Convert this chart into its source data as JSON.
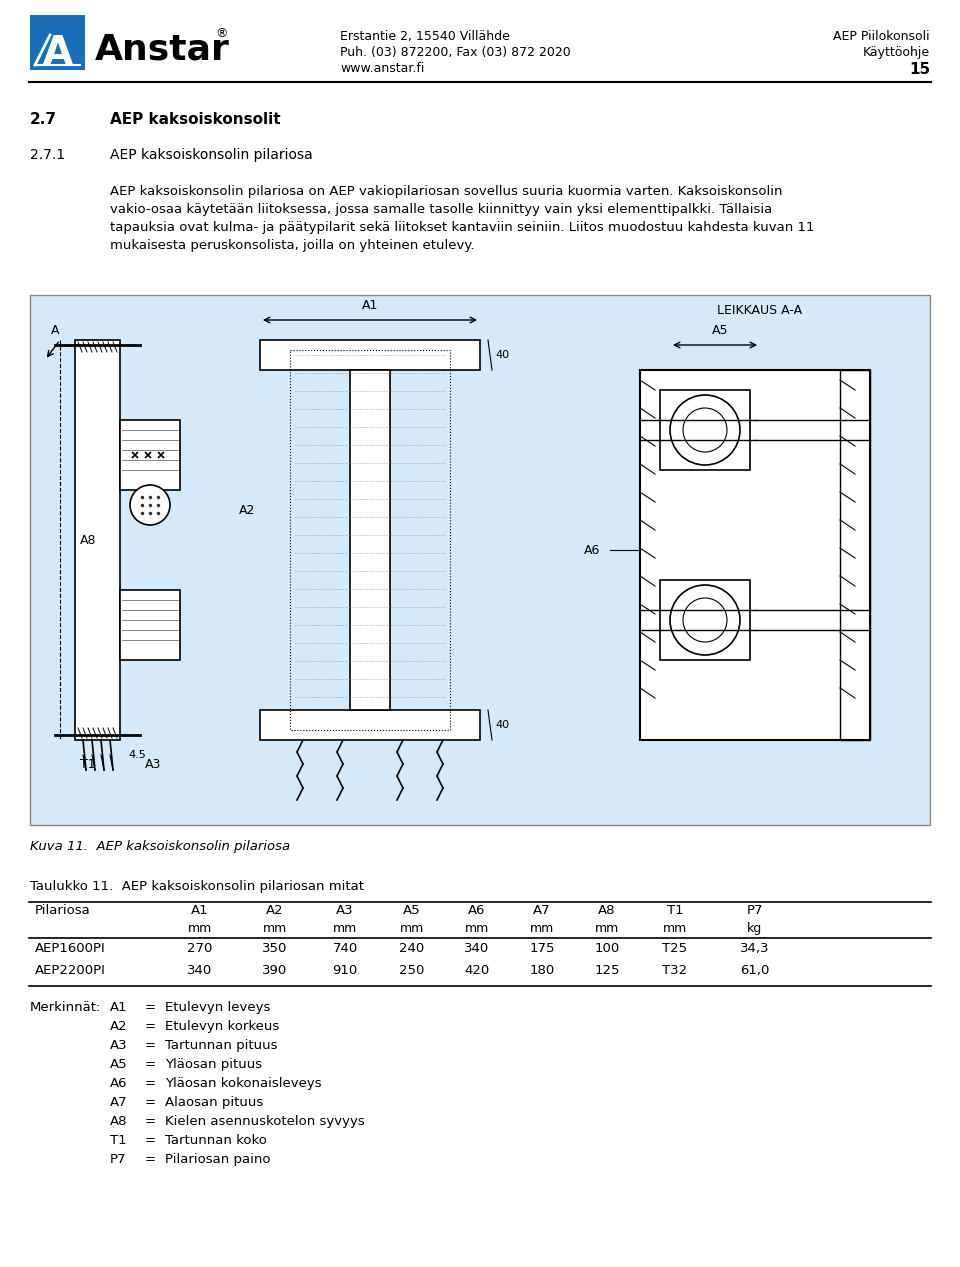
{
  "page_width": 9.6,
  "page_height": 12.67,
  "bg_color": "#ffffff",
  "header": {
    "logo_text": "Anstar",
    "address_line1": "Erstantie 2, 15540 Villähde",
    "address_line2": "Puh. (03) 872200, Fax (03) 872 2020",
    "address_line3": "www.anstar.fi",
    "right_line1": "AEP Piilokonsoli",
    "right_line2": "Käyttöohje",
    "right_line3": "15"
  },
  "section_title": "2.7    AEP kaksoiskonsolit",
  "subsection_title": "2.7.1   AEP kaksoiskonsolin pilariosa",
  "body_text": "AEP kaksoiskonsolin pilariosa on AEP vakiopilariosan sovellus suuria kuormia varten. Kaksoiskonsolin\nvakio-osaa käytetään liitoksessa, jossa samalle tasolle kiinnittyy vain yksi elementtipalkki. Tällaisia\ntapauksia ovat kulma- ja päätypilarit sekä liitokset kantaviin seiniin. Liitos muodostuu kahdesta kuvan 11\nmukaisesta peruskonsolista, joilla on yhteinen etulevy.",
  "diagram_bg": "#d6e9f8",
  "figure_caption": "Kuva 11.  AEP kaksoiskonsolin pilariosa",
  "table_title": "Taulukko 11.  AEP kaksoiskonsolin pilariosan mitat",
  "table_headers": [
    "Pilariosa",
    "A1",
    "A2",
    "A3",
    "A5",
    "A6",
    "A7",
    "A8",
    "T1",
    "P7"
  ],
  "table_units": [
    "",
    "mm",
    "mm",
    "mm",
    "mm",
    "mm",
    "mm",
    "mm",
    "mm",
    "kg"
  ],
  "table_rows": [
    [
      "AEP1600PI",
      "270",
      "350",
      "740",
      "240",
      "340",
      "175",
      "100",
      "T25",
      "34,3"
    ],
    [
      "AEP2200PI",
      "340",
      "390",
      "910",
      "250",
      "420",
      "180",
      "125",
      "T32",
      "61,0"
    ]
  ],
  "merkinnät": [
    [
      "A1",
      "=",
      "Etulevyn leveys"
    ],
    [
      "A2",
      "=",
      "Etulevyn korkeus"
    ],
    [
      "A3",
      "=",
      "Tartunnan pituus"
    ],
    [
      "A5",
      "=",
      "Yläosan pituus"
    ],
    [
      "A6",
      "=",
      "Yläosan kokonaisleveys"
    ],
    [
      "A7",
      "=",
      "Alaosan pituus"
    ],
    [
      "A8",
      "=",
      "Kielen asennuskotelon syvyys"
    ],
    [
      "T1",
      "=",
      "Tartunnan koko"
    ],
    [
      "P7",
      "=",
      "Pilariosan paino"
    ]
  ]
}
